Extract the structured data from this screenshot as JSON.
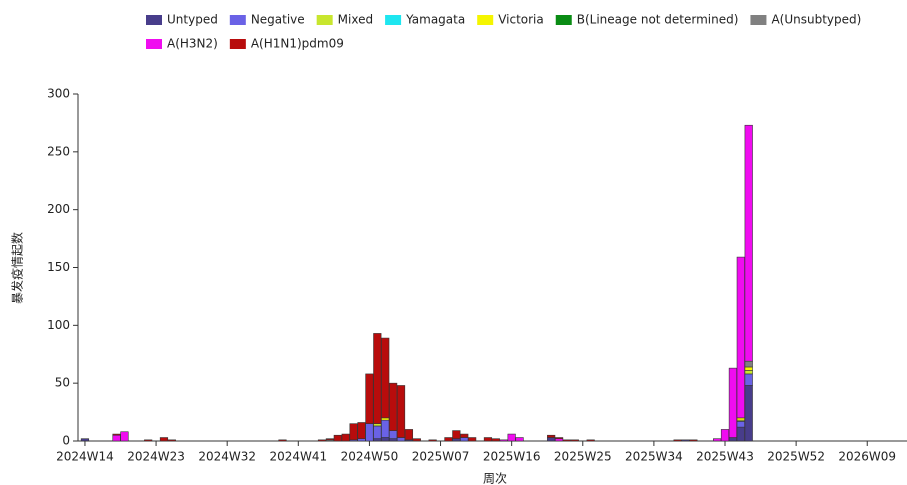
{
  "chart_data": {
    "type": "stacked_bar",
    "x_label": "周次",
    "y_label": "暴发疫情起数",
    "categories": [
      "2024W14",
      null,
      null,
      null,
      null,
      null,
      null,
      null,
      null,
      "2024W23",
      null,
      null,
      null,
      null,
      null,
      null,
      null,
      null,
      "2024W32",
      null,
      null,
      null,
      null,
      null,
      null,
      null,
      null,
      "2024W41",
      null,
      null,
      null,
      null,
      null,
      null,
      null,
      null,
      "2024W50",
      null,
      null,
      null,
      null,
      null,
      null,
      null,
      null,
      "2025W07",
      null,
      null,
      null,
      null,
      null,
      null,
      null,
      null,
      "2025W16",
      null,
      null,
      null,
      null,
      null,
      null,
      null,
      null,
      "2025W25",
      null,
      null,
      null,
      null,
      null,
      null,
      null,
      null,
      "2025W34",
      null,
      null,
      null,
      null,
      null,
      null,
      null,
      null,
      "2025W43",
      null,
      null,
      null,
      null,
      null,
      null,
      null,
      null,
      "2025W52",
      null,
      null,
      null,
      null,
      null,
      null,
      null,
      null,
      "2026W09",
      null,
      null
    ],
    "ylim": [
      0,
      300
    ],
    "yticks": [
      0,
      50,
      100,
      150,
      200,
      250,
      300
    ],
    "series": [
      {
        "name": "Untyped",
        "color": "#483d8b",
        "values": [
          2,
          0,
          0,
          0,
          0,
          0,
          0,
          0,
          0,
          0,
          0,
          0,
          0,
          0,
          0,
          0,
          0,
          0,
          0,
          0,
          0,
          0,
          0,
          0,
          0,
          0,
          0,
          0,
          0,
          0,
          0,
          0,
          0,
          0,
          0,
          0,
          0,
          2,
          3,
          2,
          0,
          1,
          0,
          0,
          0,
          0,
          0,
          2,
          0,
          0,
          0,
          0,
          0,
          0,
          0,
          0,
          0,
          0,
          0,
          3,
          0,
          0,
          0,
          0,
          0,
          0,
          0,
          0,
          0,
          0,
          0,
          0,
          0,
          0,
          0,
          0,
          1,
          0,
          0,
          0,
          0,
          0,
          2,
          12,
          48,
          0,
          0,
          0,
          0,
          0,
          0,
          0,
          0,
          0,
          0,
          0,
          0,
          0,
          0,
          0,
          0,
          0
        ]
      },
      {
        "name": "Negative",
        "color": "#6a62e6",
        "values": [
          0,
          0,
          0,
          0,
          0,
          0,
          0,
          0,
          0,
          0,
          0,
          0,
          0,
          0,
          0,
          0,
          0,
          0,
          0,
          0,
          0,
          0,
          0,
          0,
          0,
          0,
          0,
          0,
          0,
          0,
          0,
          0,
          0,
          0,
          1,
          2,
          15,
          11,
          15,
          7,
          3,
          0,
          0,
          0,
          0,
          0,
          0,
          0,
          3,
          0,
          0,
          0,
          0,
          0,
          0,
          0,
          0,
          0,
          0,
          0,
          0,
          0,
          0,
          0,
          0,
          0,
          0,
          0,
          0,
          0,
          0,
          0,
          0,
          0,
          0,
          0,
          0,
          0,
          0,
          0,
          0,
          0,
          1,
          5,
          10,
          0,
          0,
          0,
          0,
          0,
          0,
          0,
          0,
          0,
          0,
          0,
          0,
          0,
          0,
          0,
          0,
          0
        ]
      },
      {
        "name": "Mixed",
        "color": "#c8e62e",
        "values": [
          0,
          0,
          0,
          0,
          0,
          0,
          0,
          0,
          0,
          0,
          0,
          0,
          0,
          0,
          0,
          0,
          0,
          0,
          0,
          0,
          0,
          0,
          0,
          0,
          0,
          0,
          0,
          0,
          0,
          0,
          0,
          0,
          0,
          0,
          0,
          0,
          0,
          2,
          0,
          0,
          0,
          0,
          0,
          0,
          0,
          0,
          0,
          0,
          0,
          0,
          0,
          0,
          0,
          0,
          0,
          0,
          0,
          0,
          0,
          0,
          0,
          0,
          0,
          0,
          0,
          0,
          0,
          0,
          0,
          0,
          0,
          0,
          0,
          0,
          0,
          0,
          0,
          0,
          0,
          0,
          0,
          0,
          0,
          1,
          3,
          0,
          0,
          0,
          0,
          0,
          0,
          0,
          0,
          0,
          0,
          0,
          0,
          0,
          0,
          0,
          0,
          0
        ]
      },
      {
        "name": "Yamagata",
        "color": "#1ee6f0",
        "values": [
          0,
          0,
          0,
          0,
          0,
          0,
          0,
          0,
          0,
          0,
          0,
          0,
          0,
          0,
          0,
          0,
          0,
          0,
          0,
          0,
          0,
          0,
          0,
          0,
          0,
          0,
          0,
          0,
          0,
          0,
          0,
          0,
          0,
          0,
          0,
          0,
          0,
          0,
          0,
          0,
          0,
          0,
          0,
          0,
          0,
          0,
          0,
          0,
          0,
          0,
          0,
          0,
          0,
          0,
          0,
          0,
          0,
          0,
          0,
          0,
          0,
          0,
          0,
          0,
          0,
          0,
          0,
          0,
          0,
          0,
          0,
          0,
          0,
          0,
          0,
          0,
          0,
          0,
          0,
          0,
          0,
          0,
          0,
          0,
          0,
          0,
          0,
          0,
          0,
          0,
          0,
          0,
          0,
          0,
          0,
          0,
          0,
          0,
          0,
          0,
          0,
          0
        ]
      },
      {
        "name": "Victoria",
        "color": "#f5f500",
        "values": [
          0,
          0,
          0,
          0,
          0,
          0,
          0,
          0,
          0,
          0,
          0,
          0,
          0,
          0,
          0,
          0,
          0,
          0,
          0,
          0,
          0,
          0,
          0,
          0,
          0,
          0,
          0,
          0,
          0,
          0,
          0,
          0,
          0,
          0,
          0,
          0,
          0,
          0,
          2,
          0,
          0,
          0,
          0,
          0,
          0,
          0,
          0,
          0,
          0,
          0,
          0,
          0,
          0,
          0,
          0,
          0,
          0,
          0,
          0,
          0,
          0,
          0,
          0,
          0,
          0,
          0,
          0,
          0,
          0,
          0,
          0,
          0,
          0,
          0,
          0,
          0,
          0,
          0,
          0,
          0,
          0,
          0,
          0,
          2,
          3,
          0,
          0,
          0,
          0,
          0,
          0,
          0,
          0,
          0,
          0,
          0,
          0,
          0,
          0,
          0,
          0,
          0
        ]
      },
      {
        "name": "B(Lineage not determined)",
        "color": "#0a8c14",
        "values": [
          0,
          0,
          0,
          0,
          0,
          0,
          0,
          0,
          0,
          0,
          0,
          0,
          0,
          0,
          0,
          0,
          0,
          0,
          0,
          0,
          0,
          0,
          0,
          0,
          0,
          0,
          0,
          0,
          0,
          0,
          0,
          0,
          0,
          0,
          0,
          0,
          0,
          0,
          0,
          0,
          0,
          0,
          0,
          0,
          0,
          0,
          0,
          0,
          0,
          0,
          0,
          0,
          0,
          0,
          0,
          0,
          0,
          0,
          0,
          0,
          0,
          0,
          0,
          0,
          0,
          0,
          0,
          0,
          0,
          0,
          0,
          0,
          0,
          0,
          0,
          0,
          0,
          0,
          0,
          0,
          0,
          0,
          0,
          0,
          0,
          0,
          0,
          0,
          0,
          0,
          0,
          0,
          0,
          0,
          0,
          0,
          0,
          0,
          0,
          0,
          0,
          0
        ]
      },
      {
        "name": "A(Unsubtyped)",
        "color": "#808080",
        "values": [
          0,
          0,
          0,
          0,
          0,
          0,
          0,
          0,
          0,
          0,
          0,
          0,
          0,
          0,
          0,
          0,
          0,
          0,
          0,
          0,
          0,
          0,
          0,
          0,
          0,
          0,
          0,
          0,
          0,
          0,
          0,
          1,
          0,
          0,
          0,
          0,
          0,
          0,
          0,
          0,
          0,
          0,
          0,
          0,
          0,
          0,
          0,
          0,
          0,
          0,
          0,
          0,
          0,
          0,
          0,
          0,
          0,
          0,
          0,
          0,
          0,
          0,
          0,
          0,
          0,
          0,
          0,
          0,
          0,
          0,
          0,
          0,
          0,
          0,
          0,
          0,
          0,
          0,
          0,
          0,
          0,
          0,
          0,
          0,
          5,
          0,
          0,
          0,
          0,
          0,
          0,
          0,
          0,
          0,
          0,
          0,
          0,
          0,
          0,
          0,
          0,
          0
        ]
      },
      {
        "name": "A(H3N2)",
        "color": "#f00cf0",
        "values": [
          0,
          0,
          0,
          0,
          5,
          8,
          0,
          0,
          0,
          0,
          0,
          0,
          0,
          0,
          0,
          0,
          0,
          0,
          0,
          0,
          0,
          0,
          0,
          0,
          0,
          0,
          0,
          0,
          0,
          0,
          0,
          0,
          0,
          0,
          0,
          0,
          0,
          0,
          0,
          0,
          0,
          0,
          0,
          0,
          0,
          0,
          0,
          0,
          0,
          0,
          0,
          0,
          0,
          1,
          6,
          3,
          0,
          0,
          0,
          0,
          2,
          0,
          0,
          0,
          0,
          0,
          0,
          0,
          0,
          0,
          0,
          0,
          0,
          0,
          0,
          0,
          0,
          0,
          0,
          0,
          2,
          10,
          60,
          139,
          204,
          0,
          0,
          0,
          0,
          0,
          0,
          0,
          0,
          0,
          0,
          0,
          0,
          0,
          0,
          0,
          0,
          0
        ]
      },
      {
        "name": "A(H1N1)pdm09",
        "color": "#b80c0c",
        "values": [
          0,
          0,
          0,
          0,
          1,
          0,
          0,
          0,
          1,
          0,
          3,
          1,
          0,
          0,
          0,
          0,
          0,
          0,
          0,
          0,
          0,
          0,
          0,
          0,
          0,
          1,
          0,
          0,
          0,
          0,
          1,
          1,
          5,
          6,
          14,
          14,
          43,
          78,
          69,
          41,
          45,
          9,
          2,
          0,
          1,
          0,
          3,
          7,
          3,
          3,
          0,
          3,
          2,
          0,
          0,
          0,
          0,
          0,
          0,
          2,
          1,
          1,
          1,
          0,
          1,
          0,
          0,
          0,
          0,
          0,
          0,
          0,
          0,
          0,
          0,
          1,
          0,
          1,
          0,
          0,
          0,
          0,
          0,
          0,
          0,
          0,
          0,
          0,
          0,
          0,
          0,
          0,
          0,
          0,
          0,
          0,
          0,
          0,
          0,
          0,
          0,
          0
        ]
      }
    ]
  }
}
